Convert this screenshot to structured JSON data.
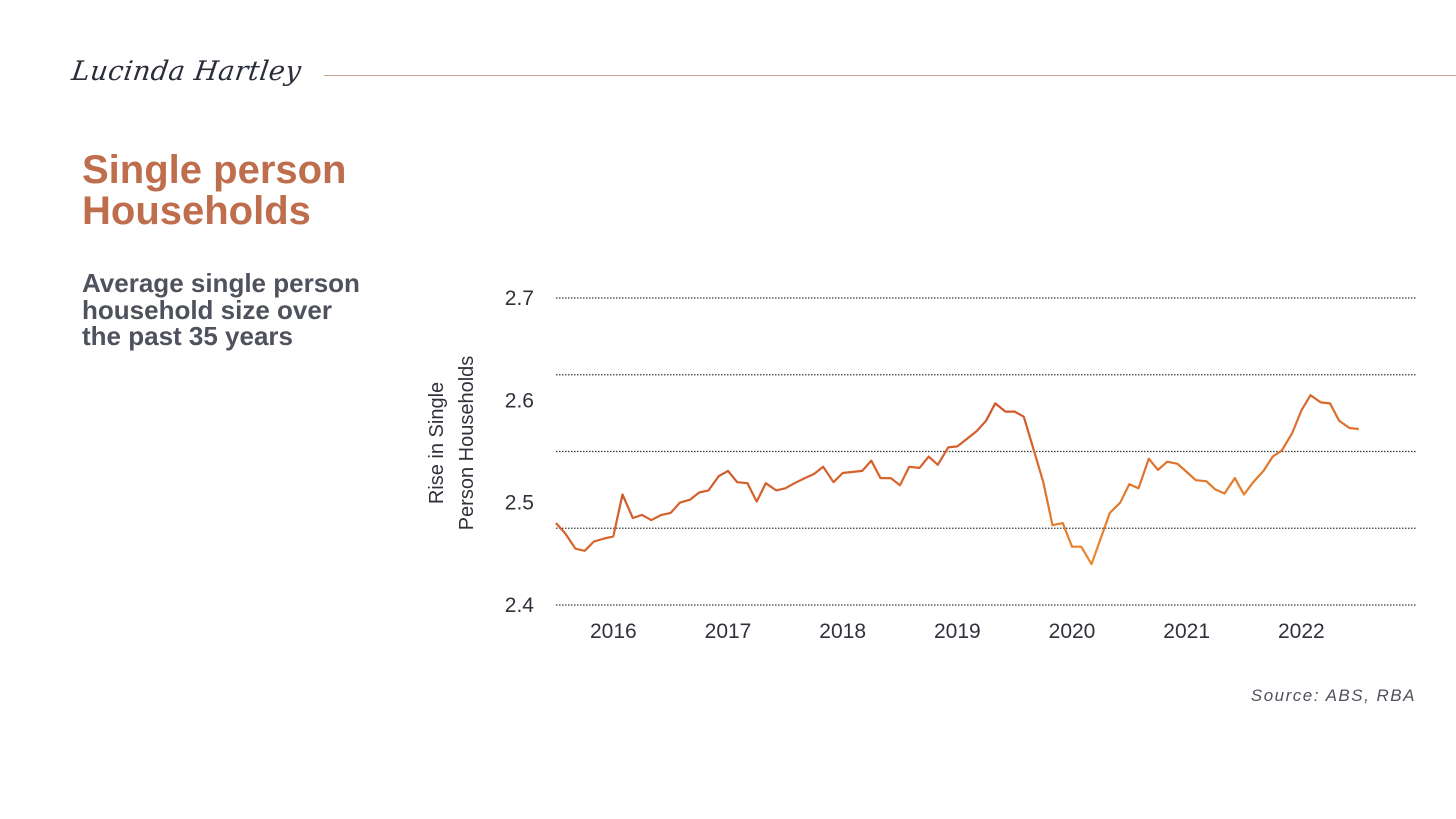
{
  "brand": {
    "signature": "Lucinda Hartley"
  },
  "heading": {
    "title": "Single person Households",
    "subtitle": "Average single person household size over the past 35 years"
  },
  "source": "Source: ABS, RBA",
  "colors": {
    "accent": "#bf6e4d",
    "line_start": "#c0392b",
    "line_end": "#f29a2e",
    "text": "#4f525c"
  },
  "chart_data": {
    "type": "line",
    "title": "",
    "xlabel": "",
    "ylabel": "Rise in Single Person Households",
    "y_ticks": [
      "2.7",
      "2.6",
      "2.5",
      "2.4"
    ],
    "x_ticks": [
      "2016",
      "2017",
      "2018",
      "2019",
      "2020",
      "2021",
      "2022"
    ],
    "ylim": [
      2.4,
      2.7
    ],
    "grid": "horizontal dotted",
    "series": [
      {
        "x": [
          2015.5,
          2015.58,
          2015.67,
          2015.75,
          2015.83,
          2015.92,
          2016.0,
          2016.08,
          2016.17,
          2016.25,
          2016.33,
          2016.42,
          2016.5,
          2016.58,
          2016.67,
          2016.75,
          2016.83,
          2016.92,
          2017.0,
          2017.08,
          2017.17,
          2017.25,
          2017.33,
          2017.42,
          2017.5,
          2017.58,
          2017.67,
          2017.75,
          2017.83,
          2017.92,
          2018.0,
          2018.08,
          2018.17,
          2018.25,
          2018.33,
          2018.42,
          2018.5,
          2018.58,
          2018.67,
          2018.75,
          2018.83,
          2018.92,
          2019.0,
          2019.08,
          2019.17,
          2019.25,
          2019.33,
          2019.42,
          2019.5,
          2019.58,
          2019.67,
          2019.75,
          2019.83,
          2019.92,
          2020.0,
          2020.08,
          2020.17,
          2020.25,
          2020.33,
          2020.42,
          2020.5,
          2020.58,
          2020.67,
          2020.75,
          2020.83,
          2020.92,
          2021.0,
          2021.08,
          2021.17,
          2021.25,
          2021.33,
          2021.42,
          2021.5,
          2021.58,
          2021.67,
          2021.75,
          2021.83,
          2021.92,
          2022.0,
          2022.08,
          2022.17,
          2022.25,
          2022.33,
          2022.42,
          2022.5
        ],
        "y": [
          2.48,
          2.47,
          2.455,
          2.453,
          2.462,
          2.465,
          2.467,
          2.508,
          2.485,
          2.488,
          2.483,
          2.488,
          2.49,
          2.5,
          2.503,
          2.51,
          2.512,
          2.526,
          2.531,
          2.52,
          2.519,
          2.501,
          2.519,
          2.512,
          2.514,
          2.519,
          2.524,
          2.528,
          2.535,
          2.52,
          2.529,
          2.53,
          2.531,
          2.541,
          2.524,
          2.524,
          2.517,
          2.535,
          2.534,
          2.545,
          2.537,
          2.554,
          2.555,
          2.562,
          2.57,
          2.58,
          2.597,
          2.589,
          2.589,
          2.584,
          2.55,
          2.52,
          2.478,
          2.48,
          2.457,
          2.457,
          2.44,
          2.465,
          2.49,
          2.5,
          2.518,
          2.514,
          2.543,
          2.532,
          2.54,
          2.538,
          2.53,
          2.522,
          2.521,
          2.513,
          2.509,
          2.524,
          2.508,
          2.52,
          2.531,
          2.545,
          2.551,
          2.568,
          2.59,
          2.605,
          2.598,
          2.597,
          2.58,
          2.573,
          2.572
        ]
      }
    ]
  }
}
